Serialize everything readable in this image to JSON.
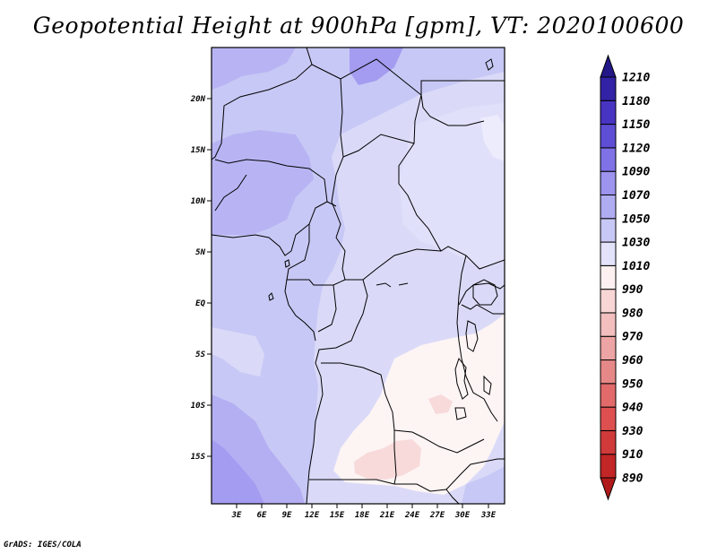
{
  "title": "Geopotential Height at 900hPa [gpm], VT: 2020100600",
  "footer": "GrADS: IGES/COLA",
  "map": {
    "lat_labels": [
      "20N",
      "15N",
      "10N",
      "5N",
      "EQ",
      "5S",
      "10S",
      "15S"
    ],
    "lon_labels": [
      "3E",
      "6E",
      "9E",
      "12E",
      "15E",
      "18E",
      "21E",
      "24E",
      "27E",
      "30E",
      "33E"
    ]
  },
  "colorbar": {
    "levels": [
      "890",
      "910",
      "930",
      "940",
      "950",
      "960",
      "970",
      "980",
      "990",
      "1010",
      "1030",
      "1050",
      "1070",
      "1090",
      "1120",
      "1150",
      "1180",
      "1210"
    ],
    "colors": [
      "#b01a1a",
      "#c22626",
      "#d03a3a",
      "#de5050",
      "#e26a6a",
      "#e68888",
      "#eca4a4",
      "#f2bebe",
      "#f8d6d6",
      "#fdf0f0",
      "#e2e2fa",
      "#c8c8f6",
      "#b0acf2",
      "#9c94ee",
      "#7e72e6",
      "#5e4ed6",
      "#4834c2",
      "#3222a6",
      "#241788"
    ]
  }
}
